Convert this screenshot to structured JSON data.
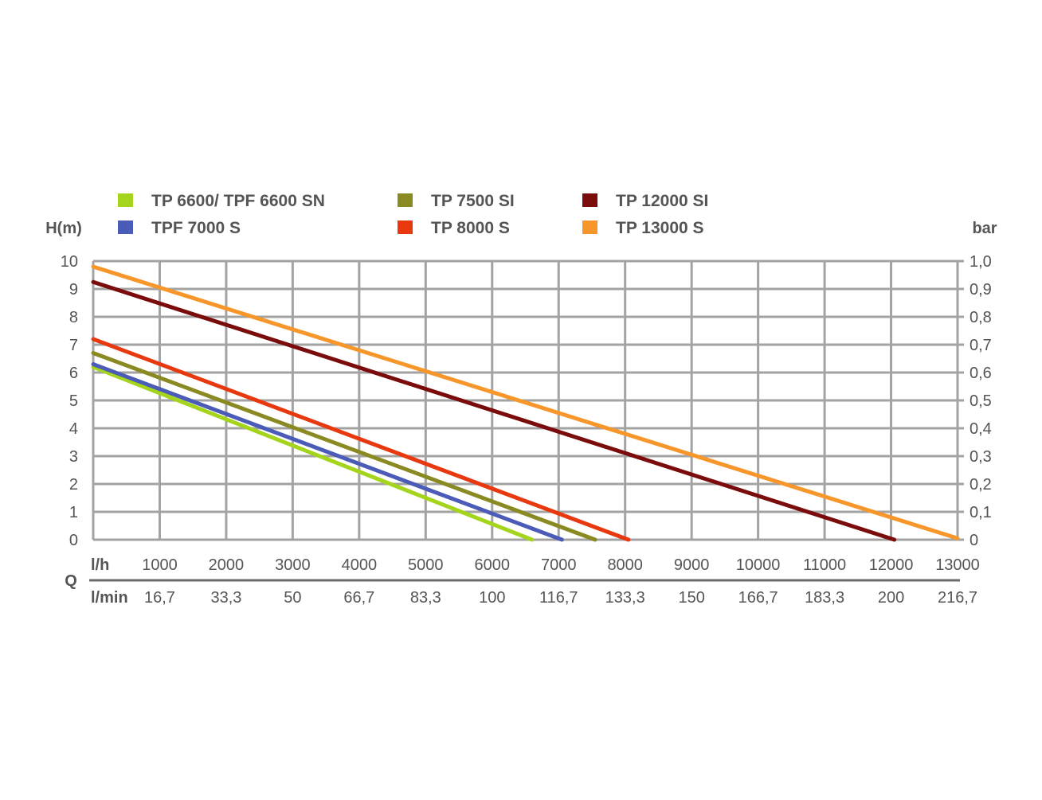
{
  "chart_data": {
    "type": "line",
    "ylabel_left": "H(m)",
    "ylabel_right": "bar",
    "xlabel": "Q",
    "x_unit_primary": "l/h",
    "x_unit_secondary": "l/min",
    "xlim": [
      0,
      13000
    ],
    "ylim": [
      0,
      10
    ],
    "grid": true,
    "legend_position": "top",
    "y_ticks_left": [
      "0",
      "1",
      "2",
      "3",
      "4",
      "5",
      "6",
      "7",
      "8",
      "9",
      "10"
    ],
    "y_ticks_right": [
      "0",
      "0,1",
      "0,2",
      "0,3",
      "0,4",
      "0,5",
      "0,6",
      "0,7",
      "0,8",
      "0,9",
      "1,0"
    ],
    "x_ticks_primary": [
      "1000",
      "2000",
      "3000",
      "4000",
      "5000",
      "6000",
      "7000",
      "8000",
      "9000",
      "10000",
      "11000",
      "12000",
      "13000"
    ],
    "x_ticks_secondary": [
      "16,7",
      "33,3",
      "50",
      "66,7",
      "83,3",
      "100",
      "116,7",
      "133,3",
      "150",
      "166,7",
      "183,3",
      "200",
      "216,7"
    ],
    "series": [
      {
        "name": "TP 6600/ TPF 6600 SN",
        "color": "#a4d41c",
        "points": [
          [
            0,
            6.2
          ],
          [
            6600,
            0
          ]
        ]
      },
      {
        "name": "TP 7500 SI",
        "color": "#8a8a22",
        "points": [
          [
            0,
            6.7
          ],
          [
            7550,
            0
          ]
        ]
      },
      {
        "name": "TP 12000 SI",
        "color": "#7a0c0c",
        "points": [
          [
            0,
            9.25
          ],
          [
            12050,
            0
          ]
        ]
      },
      {
        "name": "TPF 7000 S",
        "color": "#4b5cb8",
        "points": [
          [
            0,
            6.3
          ],
          [
            7050,
            0
          ]
        ]
      },
      {
        "name": "TP 8000 S",
        "color": "#e8380e",
        "points": [
          [
            0,
            7.2
          ],
          [
            8050,
            0
          ]
        ]
      },
      {
        "name": "TP 13000 S",
        "color": "#f7962a",
        "points": [
          [
            0,
            9.8
          ],
          [
            13000,
            0.05
          ]
        ]
      }
    ]
  }
}
